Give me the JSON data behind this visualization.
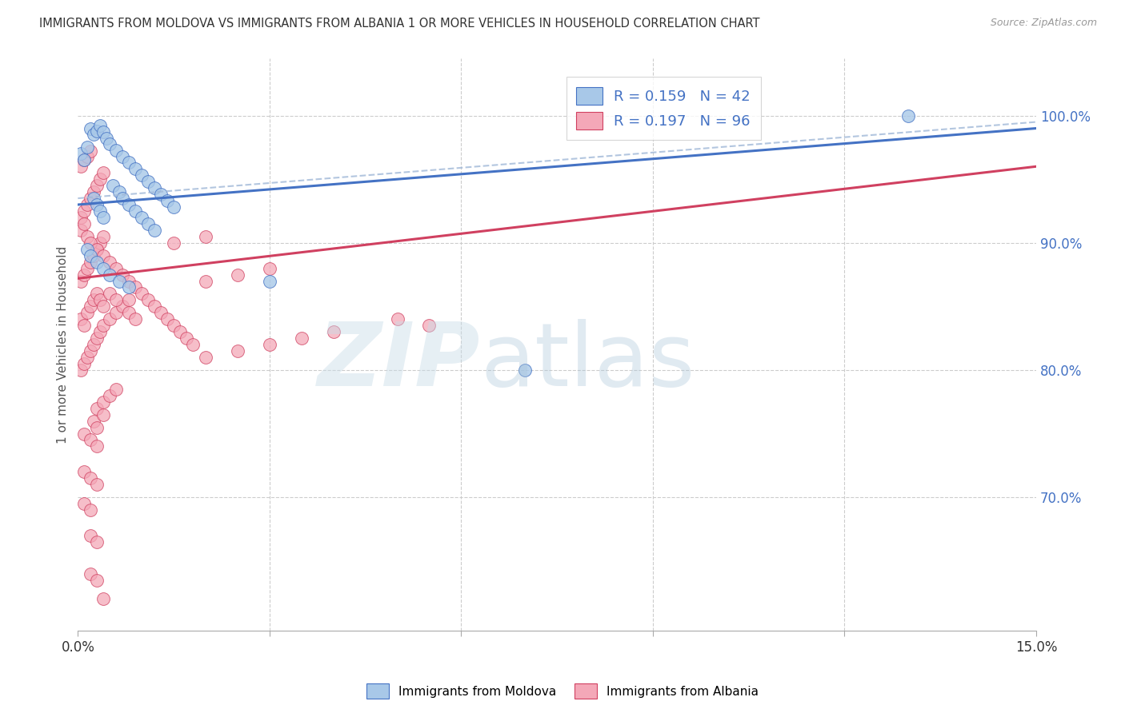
{
  "title": "IMMIGRANTS FROM MOLDOVA VS IMMIGRANTS FROM ALBANIA 1 OR MORE VEHICLES IN HOUSEHOLD CORRELATION CHART",
  "source": "Source: ZipAtlas.com",
  "ylabel": "1 or more Vehicles in Household",
  "ytick_values": [
    1.0,
    0.9,
    0.8,
    0.7
  ],
  "xlim": [
    0.0,
    0.15
  ],
  "ylim": [
    0.595,
    1.045
  ],
  "moldova_color": "#a8c8e8",
  "albania_color": "#f4a8b8",
  "trendline_moldova_color": "#4472c4",
  "trendline_albania_color": "#d04060",
  "trendline_moldova_dashed_color": "#a0b8d8",
  "moldova_R": 0.159,
  "moldova_N": 42,
  "albania_R": 0.197,
  "albania_N": 96,
  "trendline_moldova_y0": 0.93,
  "trendline_moldova_y1": 0.99,
  "trendline_albania_y0": 0.872,
  "trendline_albania_y1": 0.96,
  "moldova_points": [
    [
      0.0005,
      0.97
    ],
    [
      0.001,
      0.965
    ],
    [
      0.0015,
      0.975
    ],
    [
      0.002,
      0.99
    ],
    [
      0.0025,
      0.985
    ],
    [
      0.003,
      0.988
    ],
    [
      0.0035,
      0.992
    ],
    [
      0.004,
      0.987
    ],
    [
      0.0045,
      0.982
    ],
    [
      0.005,
      0.978
    ],
    [
      0.006,
      0.973
    ],
    [
      0.007,
      0.968
    ],
    [
      0.008,
      0.963
    ],
    [
      0.009,
      0.958
    ],
    [
      0.01,
      0.953
    ],
    [
      0.011,
      0.948
    ],
    [
      0.012,
      0.943
    ],
    [
      0.013,
      0.938
    ],
    [
      0.014,
      0.933
    ],
    [
      0.015,
      0.928
    ],
    [
      0.0055,
      0.945
    ],
    [
      0.0065,
      0.94
    ],
    [
      0.007,
      0.935
    ],
    [
      0.008,
      0.93
    ],
    [
      0.009,
      0.925
    ],
    [
      0.01,
      0.92
    ],
    [
      0.011,
      0.915
    ],
    [
      0.012,
      0.91
    ],
    [
      0.0025,
      0.935
    ],
    [
      0.003,
      0.93
    ],
    [
      0.0035,
      0.925
    ],
    [
      0.004,
      0.92
    ],
    [
      0.0015,
      0.895
    ],
    [
      0.002,
      0.89
    ],
    [
      0.003,
      0.885
    ],
    [
      0.004,
      0.88
    ],
    [
      0.005,
      0.875
    ],
    [
      0.0065,
      0.87
    ],
    [
      0.008,
      0.865
    ],
    [
      0.03,
      0.87
    ],
    [
      0.07,
      0.8
    ],
    [
      0.13,
      1.0
    ]
  ],
  "albania_points": [
    [
      0.0005,
      0.84
    ],
    [
      0.001,
      0.835
    ],
    [
      0.0015,
      0.845
    ],
    [
      0.002,
      0.85
    ],
    [
      0.0025,
      0.855
    ],
    [
      0.003,
      0.86
    ],
    [
      0.0035,
      0.855
    ],
    [
      0.004,
      0.85
    ],
    [
      0.0005,
      0.87
    ],
    [
      0.001,
      0.875
    ],
    [
      0.0015,
      0.88
    ],
    [
      0.002,
      0.885
    ],
    [
      0.0025,
      0.89
    ],
    [
      0.003,
      0.895
    ],
    [
      0.0035,
      0.9
    ],
    [
      0.004,
      0.905
    ],
    [
      0.0005,
      0.92
    ],
    [
      0.001,
      0.925
    ],
    [
      0.0015,
      0.93
    ],
    [
      0.002,
      0.935
    ],
    [
      0.0025,
      0.94
    ],
    [
      0.003,
      0.945
    ],
    [
      0.0035,
      0.95
    ],
    [
      0.004,
      0.955
    ],
    [
      0.0005,
      0.96
    ],
    [
      0.001,
      0.965
    ],
    [
      0.0015,
      0.968
    ],
    [
      0.002,
      0.972
    ],
    [
      0.0005,
      0.8
    ],
    [
      0.001,
      0.805
    ],
    [
      0.0015,
      0.81
    ],
    [
      0.002,
      0.815
    ],
    [
      0.0025,
      0.82
    ],
    [
      0.003,
      0.825
    ],
    [
      0.0035,
      0.83
    ],
    [
      0.004,
      0.835
    ],
    [
      0.005,
      0.84
    ],
    [
      0.006,
      0.845
    ],
    [
      0.007,
      0.85
    ],
    [
      0.008,
      0.855
    ],
    [
      0.0005,
      0.91
    ],
    [
      0.001,
      0.915
    ],
    [
      0.0015,
      0.905
    ],
    [
      0.002,
      0.9
    ],
    [
      0.003,
      0.895
    ],
    [
      0.004,
      0.89
    ],
    [
      0.005,
      0.885
    ],
    [
      0.006,
      0.88
    ],
    [
      0.007,
      0.875
    ],
    [
      0.008,
      0.87
    ],
    [
      0.009,
      0.865
    ],
    [
      0.01,
      0.86
    ],
    [
      0.011,
      0.855
    ],
    [
      0.012,
      0.85
    ],
    [
      0.013,
      0.845
    ],
    [
      0.014,
      0.84
    ],
    [
      0.015,
      0.835
    ],
    [
      0.016,
      0.83
    ],
    [
      0.017,
      0.825
    ],
    [
      0.018,
      0.82
    ],
    [
      0.003,
      0.77
    ],
    [
      0.004,
      0.775
    ],
    [
      0.005,
      0.78
    ],
    [
      0.006,
      0.785
    ],
    [
      0.0025,
      0.76
    ],
    [
      0.003,
      0.755
    ],
    [
      0.004,
      0.765
    ],
    [
      0.001,
      0.75
    ],
    [
      0.002,
      0.745
    ],
    [
      0.003,
      0.74
    ],
    [
      0.001,
      0.72
    ],
    [
      0.002,
      0.715
    ],
    [
      0.003,
      0.71
    ],
    [
      0.001,
      0.695
    ],
    [
      0.002,
      0.69
    ],
    [
      0.002,
      0.67
    ],
    [
      0.003,
      0.665
    ],
    [
      0.002,
      0.64
    ],
    [
      0.003,
      0.635
    ],
    [
      0.02,
      0.81
    ],
    [
      0.025,
      0.815
    ],
    [
      0.03,
      0.82
    ],
    [
      0.035,
      0.825
    ],
    [
      0.04,
      0.83
    ],
    [
      0.02,
      0.87
    ],
    [
      0.025,
      0.875
    ],
    [
      0.03,
      0.88
    ],
    [
      0.005,
      0.86
    ],
    [
      0.006,
      0.855
    ],
    [
      0.008,
      0.845
    ],
    [
      0.009,
      0.84
    ],
    [
      0.015,
      0.9
    ],
    [
      0.02,
      0.905
    ],
    [
      0.05,
      0.84
    ],
    [
      0.055,
      0.835
    ],
    [
      0.004,
      0.62
    ]
  ],
  "grid_yticks": [
    1.0,
    0.9,
    0.8,
    0.7
  ],
  "grid_xticks": [
    0.03,
    0.06,
    0.09,
    0.12
  ]
}
